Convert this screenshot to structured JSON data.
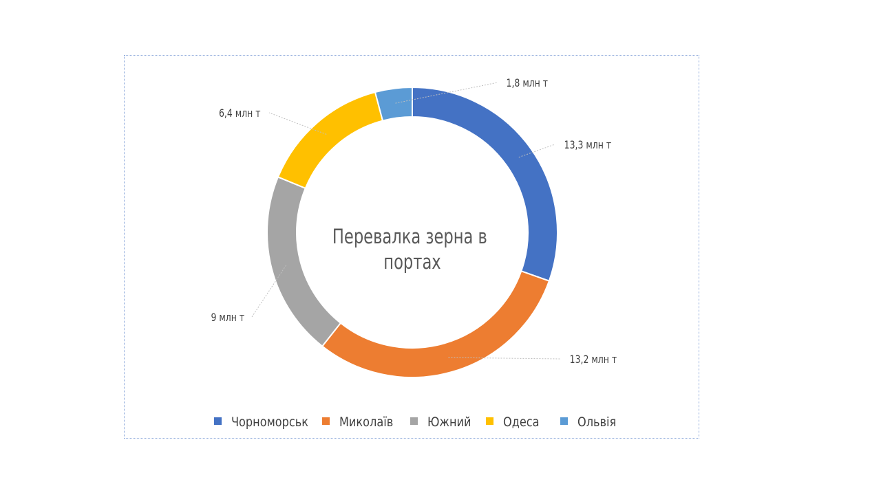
{
  "chart_data": {
    "type": "pie",
    "variant": "doughnut",
    "title": "Перевалка зерна в портах",
    "title_lines": [
      "Перевалка зерна в",
      "портах"
    ],
    "unit": "млн т",
    "categories": [
      "Чорноморськ",
      "Миколаїв",
      "Южний",
      "Одеса",
      "Ольвія"
    ],
    "values": [
      13.3,
      13.2,
      9,
      6.4,
      1.8
    ],
    "data_labels": [
      "13,3 млн т",
      "13,2 млн т",
      "9 млн т",
      "6,4 млн т",
      "1,8 млн т"
    ],
    "colors": [
      "#4472c4",
      "#ed7d31",
      "#a5a5a5",
      "#ffc000",
      "#5b9bd5"
    ],
    "legend_position": "bottom"
  }
}
